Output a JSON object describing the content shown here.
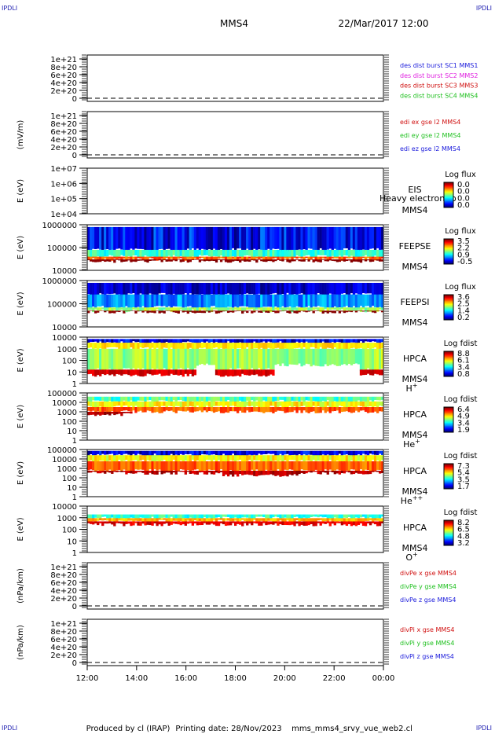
{
  "header": {
    "spacecraft": "MMS4",
    "date_time": "22/Mar/2017 12:00",
    "corner_tag": "IPDLI"
  },
  "footer": {
    "produced_by": "Produced by cl (IRAP)",
    "printing_date": "Printing date: 28/Nov/2023",
    "script_name": "mms_mms4_srvy_vue_web2.cl"
  },
  "colors": {
    "black": "#000000",
    "blue": "#1a1adb",
    "red": "#d01010",
    "magenta": "#e020e0",
    "green": "#20c020"
  },
  "chart_data": [
    {
      "type": "line",
      "id": "des-dist",
      "ylabel": "",
      "ytick_labels": [
        "0",
        "2e+20",
        "4e+20",
        "6e+20",
        "8e+20",
        "1e+21"
      ],
      "series": [
        {
          "name": "des dist burst SC1 MMS1",
          "color": "#1a1adb"
        },
        {
          "name": "des dist burst SC2 MMS2",
          "color": "#e020e0"
        },
        {
          "name": "des dist burst SC3 MMS3",
          "color": "#d01010"
        },
        {
          "name": "des dist burst SC4 MMS4",
          "color": "#20c020"
        }
      ]
    },
    {
      "type": "line",
      "id": "edi-field",
      "ylabel": "(mV/m)",
      "ytick_labels": [
        "0",
        "2e+20",
        "4e+20",
        "6e+20",
        "8e+20",
        "1e+21"
      ],
      "series": [
        {
          "name": "edi ex gse l2 MMS4",
          "color": "#d01010"
        },
        {
          "name": "edi ey gse l2 MMS4",
          "color": "#20c020"
        },
        {
          "name": "edi ez gse l2 MMS4",
          "color": "#1a1adb"
        }
      ]
    },
    {
      "type": "heatmap",
      "id": "eis",
      "ylabel": "E (eV)",
      "ytick_labels": [
        "1e+04",
        "1e+05",
        "1e+06",
        "1e+07"
      ],
      "instrument": "EIS",
      "instrument_overlay": "Heavy electron to",
      "spacecraft": "MMS4",
      "colorbar_title": "Log flux",
      "colorbar_ticks": [
        "0.0",
        "0.0",
        "0.0",
        "0.0"
      ],
      "profile": "empty"
    },
    {
      "type": "heatmap",
      "id": "feepse",
      "ylabel": "E (eV)",
      "ytick_labels": [
        "10000",
        "100000",
        "1000000"
      ],
      "instrument": "FEEPSE",
      "spacecraft": "MMS4",
      "colorbar_title": "Log flux",
      "colorbar_ticks": [
        "3.5",
        "2.2",
        "0.9",
        "-0.5"
      ],
      "profile": "feepse"
    },
    {
      "type": "heatmap",
      "id": "feepsi",
      "ylabel": "E (eV)",
      "ytick_labels": [
        "10000",
        "100000",
        "1000000"
      ],
      "instrument": "FEEPSI",
      "spacecraft": "MMS4",
      "colorbar_title": "Log flux",
      "colorbar_ticks": [
        "3.6",
        "2.5",
        "1.4",
        "0.2"
      ],
      "profile": "feepsi"
    },
    {
      "type": "heatmap",
      "id": "hpca-h",
      "ylabel": "E (eV)",
      "ytick_labels": [
        "1",
        "10",
        "100",
        "1000",
        "10000"
      ],
      "instrument": "HPCA",
      "spacecraft": "MMS4",
      "species": "H",
      "charge": "+",
      "colorbar_title": "Log fdist",
      "colorbar_ticks": [
        "8.8",
        "6.1",
        "3.4",
        "0.8"
      ],
      "profile": "hplus"
    },
    {
      "type": "heatmap",
      "id": "hpca-he",
      "ylabel": "E (eV)",
      "ytick_labels": [
        "1",
        "10",
        "100",
        "1000",
        "10000",
        "100000"
      ],
      "instrument": "HPCA",
      "spacecraft": "MMS4",
      "species": "He",
      "charge": "+",
      "colorbar_title": "Log fdist",
      "colorbar_ticks": [
        "6.4",
        "4.9",
        "3.4",
        "1.9"
      ],
      "profile": "heplus"
    },
    {
      "type": "heatmap",
      "id": "hpca-hepp",
      "ylabel": "E (eV)",
      "ytick_labels": [
        "1",
        "10",
        "100",
        "1000",
        "10000",
        "100000"
      ],
      "instrument": "HPCA",
      "spacecraft": "MMS4",
      "species": "He",
      "charge": "++",
      "colorbar_title": "Log fdist",
      "colorbar_ticks": [
        "7.3",
        "5.4",
        "3.5",
        "1.7"
      ],
      "profile": "heplusplus"
    },
    {
      "type": "heatmap",
      "id": "hpca-o",
      "ylabel": "E (eV)",
      "ytick_labels": [
        "1",
        "10",
        "100",
        "1000",
        "10000"
      ],
      "instrument": "HPCA",
      "spacecraft": "MMS4",
      "species": "O",
      "charge": "+",
      "colorbar_title": "Log fdist",
      "colorbar_ticks": [
        "8.2",
        "6.5",
        "4.8",
        "3.2"
      ],
      "profile": "oplus"
    },
    {
      "type": "line",
      "id": "divpe",
      "ylabel": "(nPa/km)",
      "ytick_labels": [
        "0",
        "2e+20",
        "4e+20",
        "6e+20",
        "8e+20",
        "1e+21"
      ],
      "series": [
        {
          "name": "divPe x gse MMS4",
          "color": "#d01010"
        },
        {
          "name": "divPe y gse MMS4",
          "color": "#20c020"
        },
        {
          "name": "divPe z gse MMS4",
          "color": "#1a1adb"
        }
      ]
    },
    {
      "type": "line",
      "id": "divpi",
      "ylabel": "(nPa/km)",
      "ytick_labels": [
        "0",
        "2e+20",
        "4e+20",
        "6e+20",
        "8e+20",
        "1e+21"
      ],
      "series": [
        {
          "name": "divPi x gse MMS4",
          "color": "#d01010"
        },
        {
          "name": "divPi y gse MMS4",
          "color": "#20c020"
        },
        {
          "name": "divPi z gse MMS4",
          "color": "#1a1adb"
        }
      ]
    }
  ],
  "time_axis": {
    "xlim": [
      "12:00",
      "00:00"
    ],
    "tick_labels": [
      "12:00",
      "14:00",
      "16:00",
      "18:00",
      "20:00",
      "22:00",
      "00:00"
    ]
  }
}
